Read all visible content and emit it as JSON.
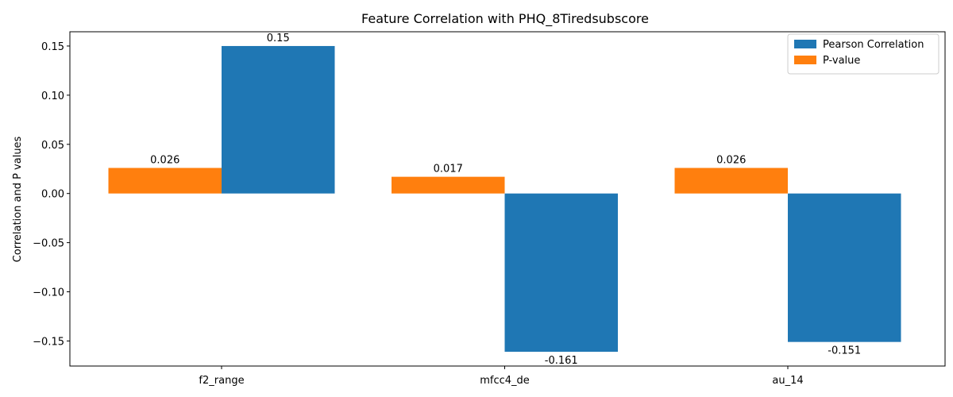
{
  "chart_data": {
    "type": "bar",
    "title": "Feature Correlation with PHQ_8Tiredsubscore",
    "xlabel": "",
    "ylabel": "Correlation and P values",
    "categories": [
      "f2_range",
      "mfcc4_de",
      "au_14"
    ],
    "series": [
      {
        "name": "Pearson Correlation",
        "values": [
          0.15,
          -0.161,
          -0.151
        ],
        "labels": [
          "0.15",
          "-0.161",
          "-0.151"
        ],
        "color": "#1f77b4"
      },
      {
        "name": "P-value",
        "values": [
          0.026,
          0.017,
          0.026
        ],
        "labels": [
          "0.026",
          "0.017",
          "0.026"
        ],
        "color": "#ff7f0e"
      }
    ],
    "ylim": [
      -0.1755,
      0.1645
    ],
    "yticks": [
      -0.15,
      -0.1,
      -0.05,
      0.0,
      0.05,
      0.1,
      0.15
    ],
    "ytick_labels": [
      "−0.15",
      "−0.10",
      "−0.05",
      "0.00",
      "0.05",
      "0.10",
      "0.15"
    ],
    "legend": "top-right",
    "grid": false
  }
}
